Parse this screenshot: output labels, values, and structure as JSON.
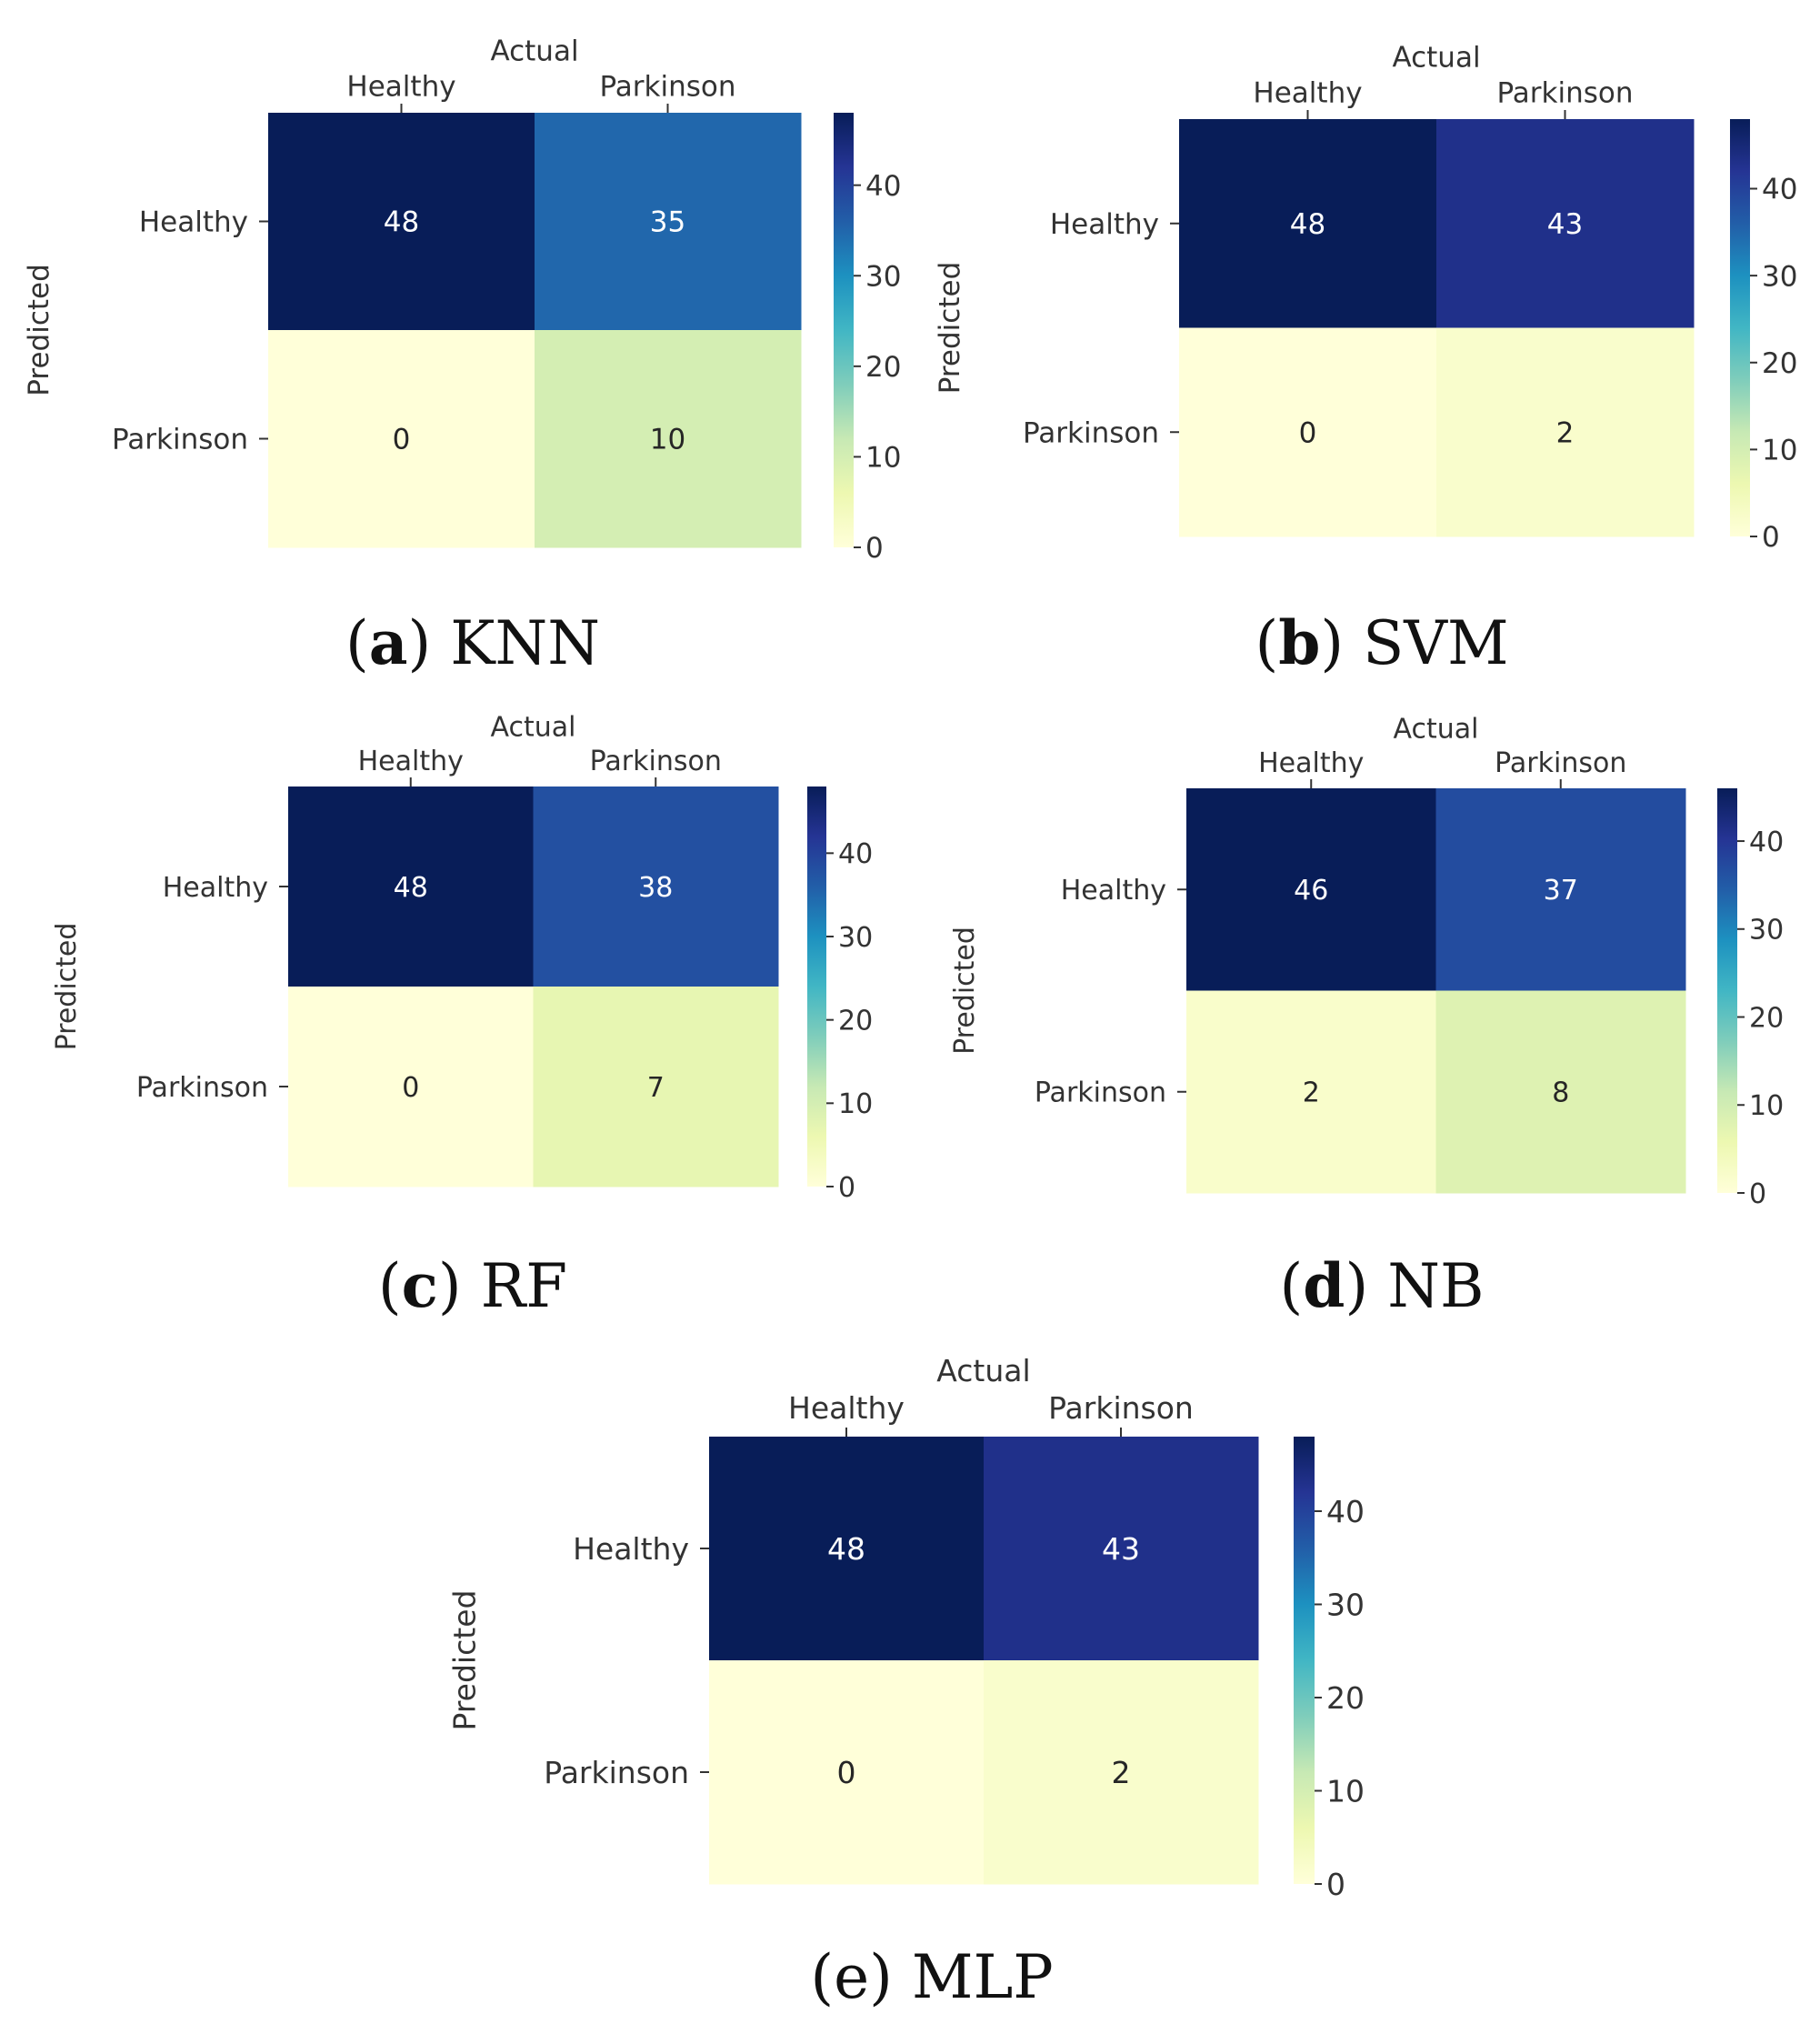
{
  "figure": {
    "panels": [
      {
        "label": "a",
        "name": "KNN",
        "caption_style": "bold-label",
        "chart_data": {
          "type": "heatmap",
          "xlabel": "Actual",
          "ylabel": "Predicted",
          "x_categories": [
            "Healthy",
            "Parkinson"
          ],
          "y_categories": [
            "Healthy",
            "Parkinson"
          ],
          "values": [
            [
              48,
              35
            ],
            [
              0,
              10
            ]
          ],
          "colorbar": {
            "colormap": "YlGnBu",
            "range": [
              0,
              48
            ],
            "ticks": [
              0,
              10,
              20,
              30,
              40
            ]
          }
        }
      },
      {
        "label": "b",
        "name": "SVM",
        "caption_style": "bold-label",
        "chart_data": {
          "type": "heatmap",
          "xlabel": "Actual",
          "ylabel": "Predicted",
          "x_categories": [
            "Healthy",
            "Parkinson"
          ],
          "y_categories": [
            "Healthy",
            "Parkinson"
          ],
          "values": [
            [
              48,
              43
            ],
            [
              0,
              2
            ]
          ],
          "colorbar": {
            "colormap": "YlGnBu",
            "range": [
              0,
              48
            ],
            "ticks": [
              0,
              10,
              20,
              30,
              40
            ]
          }
        }
      },
      {
        "label": "c",
        "name": "RF",
        "caption_style": "bold-label",
        "chart_data": {
          "type": "heatmap",
          "xlabel": "Actual",
          "ylabel": "Predicted",
          "x_categories": [
            "Healthy",
            "Parkinson"
          ],
          "y_categories": [
            "Healthy",
            "Parkinson"
          ],
          "values": [
            [
              48,
              38
            ],
            [
              0,
              7
            ]
          ],
          "colorbar": {
            "colormap": "YlGnBu",
            "range": [
              0,
              48
            ],
            "ticks": [
              0,
              10,
              20,
              30,
              40
            ]
          }
        }
      },
      {
        "label": "d",
        "name": "NB",
        "caption_style": "bold-label",
        "chart_data": {
          "type": "heatmap",
          "xlabel": "Actual",
          "ylabel": "Predicted",
          "x_categories": [
            "Healthy",
            "Parkinson"
          ],
          "y_categories": [
            "Healthy",
            "Parkinson"
          ],
          "values": [
            [
              46,
              37
            ],
            [
              2,
              8
            ]
          ],
          "colorbar": {
            "colormap": "YlGnBu",
            "range": [
              0,
              46
            ],
            "ticks": [
              0,
              10,
              20,
              30,
              40
            ]
          }
        }
      },
      {
        "label": "e",
        "name": "MLP",
        "caption_style": "plain",
        "chart_data": {
          "type": "heatmap",
          "xlabel": "Actual",
          "ylabel": "Predicted",
          "x_categories": [
            "Healthy",
            "Parkinson"
          ],
          "y_categories": [
            "Healthy",
            "Parkinson"
          ],
          "values": [
            [
              48,
              43
            ],
            [
              0,
              2
            ]
          ],
          "colorbar": {
            "colormap": "YlGnBu",
            "range": [
              0,
              48
            ],
            "ticks": [
              0,
              10,
              20,
              30,
              40
            ]
          }
        }
      }
    ]
  }
}
